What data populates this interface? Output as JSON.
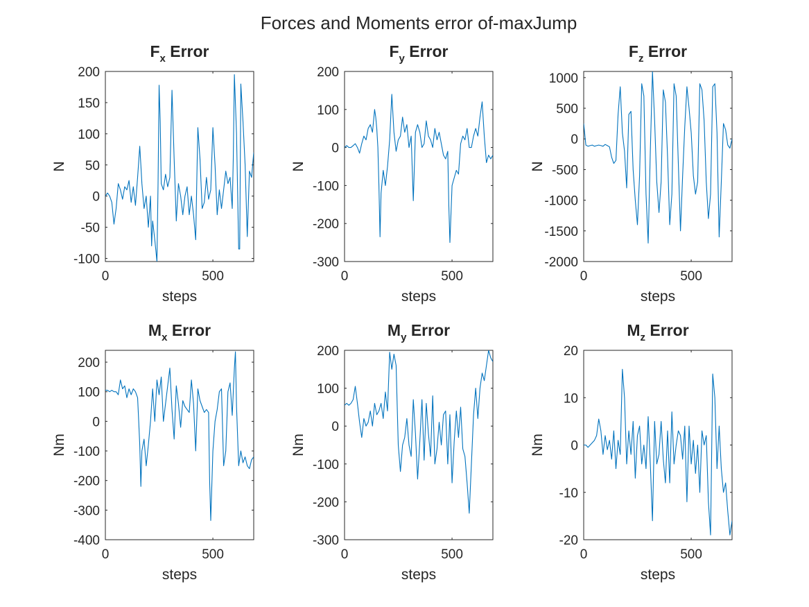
{
  "figure": {
    "title": "Forces and Moments error of-maxJump",
    "line_color": "#0072BD",
    "axis_color": "#262626"
  },
  "chart_data": [
    {
      "type": "line",
      "title": "F",
      "title_subscript": "x",
      "title_suffix": " Error",
      "xlabel": "steps",
      "ylabel": "N",
      "xlim": [
        0,
        690
      ],
      "ylim": [
        -105,
        200
      ],
      "xticks": [
        0,
        500
      ],
      "yticks": [
        -100,
        -50,
        0,
        50,
        100,
        150,
        200
      ],
      "grid": false,
      "series": [
        {
          "x": [
            0,
            10,
            20,
            30,
            40,
            50,
            60,
            70,
            80,
            90,
            100,
            110,
            120,
            130,
            140,
            150,
            160,
            165,
            170,
            180,
            190,
            200,
            210,
            215,
            220,
            230,
            240,
            245,
            250,
            255,
            260,
            270,
            280,
            290,
            300,
            310,
            320,
            330,
            340,
            350,
            360,
            370,
            380,
            390,
            400,
            410,
            420,
            425,
            430,
            440,
            450,
            460,
            470,
            480,
            490,
            500,
            510,
            520,
            530,
            540,
            550,
            560,
            570,
            580,
            590,
            595,
            600,
            610,
            620,
            625,
            630,
            640,
            650,
            660,
            670,
            680,
            690
          ],
          "y": [
            0,
            5,
            0,
            -10,
            -45,
            -20,
            20,
            10,
            -5,
            15,
            10,
            25,
            -10,
            15,
            -15,
            30,
            80,
            50,
            20,
            -20,
            0,
            -50,
            0,
            -80,
            -40,
            -70,
            -105,
            20,
            178,
            120,
            20,
            10,
            35,
            15,
            30,
            170,
            60,
            -40,
            20,
            0,
            -30,
            0,
            15,
            -30,
            0,
            -30,
            -70,
            20,
            110,
            60,
            -20,
            -10,
            30,
            -5,
            10,
            110,
            50,
            -30,
            10,
            -20,
            10,
            40,
            20,
            30,
            -20,
            60,
            195,
            100,
            -85,
            -85,
            180,
            120,
            50,
            -65,
            40,
            30,
            70
          ]
        }
      ]
    },
    {
      "type": "line",
      "title": "F",
      "title_subscript": "y",
      "title_suffix": " Error",
      "xlabel": "steps",
      "ylabel": "N",
      "xlim": [
        0,
        690
      ],
      "ylim": [
        -300,
        200
      ],
      "xticks": [
        0,
        500
      ],
      "yticks": [
        -300,
        -200,
        -100,
        0,
        100,
        200
      ],
      "grid": false,
      "series": [
        {
          "x": [
            0,
            10,
            20,
            30,
            40,
            50,
            60,
            70,
            80,
            90,
            100,
            110,
            120,
            130,
            140,
            145,
            150,
            155,
            160,
            165,
            170,
            180,
            190,
            200,
            210,
            220,
            230,
            240,
            250,
            260,
            270,
            280,
            290,
            300,
            310,
            320,
            330,
            340,
            350,
            360,
            370,
            380,
            390,
            400,
            410,
            420,
            430,
            440,
            450,
            460,
            470,
            480,
            485,
            490,
            500,
            510,
            520,
            530,
            540,
            550,
            560,
            570,
            580,
            590,
            600,
            610,
            620,
            630,
            640,
            650,
            660,
            670,
            680,
            690
          ],
          "y": [
            0,
            5,
            0,
            0,
            5,
            10,
            0,
            -15,
            10,
            30,
            20,
            50,
            60,
            40,
            100,
            80,
            50,
            0,
            -100,
            -235,
            -120,
            -60,
            -100,
            -50,
            20,
            140,
            40,
            -10,
            20,
            30,
            80,
            40,
            60,
            0,
            30,
            -140,
            40,
            60,
            40,
            0,
            10,
            70,
            30,
            20,
            0,
            50,
            20,
            40,
            10,
            -20,
            -30,
            -10,
            -150,
            -250,
            -100,
            -80,
            -60,
            -70,
            10,
            30,
            20,
            50,
            0,
            0,
            30,
            50,
            30,
            80,
            120,
            30,
            -40,
            -20,
            -30,
            -20
          ]
        }
      ]
    },
    {
      "type": "line",
      "title": "F",
      "title_subscript": "z",
      "title_suffix": " Error",
      "xlabel": "steps",
      "ylabel": "N",
      "xlim": [
        0,
        690
      ],
      "ylim": [
        -2000,
        1100
      ],
      "xticks": [
        0,
        500
      ],
      "yticks": [
        -2000,
        -1500,
        -1000,
        -500,
        0,
        500,
        1000
      ],
      "grid": false,
      "series": [
        {
          "x": [
            0,
            10,
            20,
            30,
            40,
            50,
            60,
            70,
            80,
            90,
            100,
            110,
            120,
            130,
            140,
            150,
            160,
            170,
            180,
            190,
            200,
            210,
            220,
            230,
            240,
            250,
            260,
            270,
            280,
            290,
            300,
            310,
            320,
            330,
            340,
            350,
            360,
            370,
            380,
            390,
            400,
            410,
            420,
            430,
            440,
            450,
            460,
            470,
            480,
            490,
            500,
            510,
            520,
            530,
            540,
            550,
            560,
            570,
            580,
            590,
            600,
            610,
            620,
            630,
            640,
            650,
            660,
            670,
            680,
            690
          ],
          "y": [
            250,
            -100,
            -120,
            -110,
            -100,
            -120,
            -110,
            -100,
            -110,
            -120,
            -90,
            -110,
            -130,
            -300,
            -400,
            -350,
            400,
            850,
            100,
            -200,
            -800,
            400,
            450,
            -500,
            -1000,
            -1400,
            -600,
            900,
            700,
            -900,
            -1700,
            -200,
            1100,
            300,
            -700,
            -1200,
            -700,
            800,
            600,
            -300,
            -1400,
            -900,
            900,
            700,
            -400,
            -1500,
            -600,
            200,
            850,
            500,
            100,
            -600,
            -900,
            -700,
            900,
            800,
            300,
            -700,
            -1300,
            -900,
            850,
            900,
            100,
            -1600,
            -700,
            250,
            150,
            -100,
            -150,
            0
          ]
        }
      ]
    },
    {
      "type": "line",
      "title": "M",
      "title_subscript": "x",
      "title_suffix": " Error",
      "xlabel": "steps",
      "ylabel": "Nm",
      "xlim": [
        0,
        690
      ],
      "ylim": [
        -400,
        240
      ],
      "xticks": [
        0,
        500
      ],
      "yticks": [
        -400,
        -300,
        -200,
        -100,
        0,
        100,
        200
      ],
      "grid": false,
      "series": [
        {
          "x": [
            0,
            10,
            20,
            30,
            40,
            50,
            60,
            70,
            80,
            90,
            100,
            110,
            120,
            130,
            140,
            150,
            155,
            160,
            165,
            170,
            180,
            190,
            200,
            210,
            220,
            230,
            240,
            250,
            260,
            270,
            280,
            290,
            300,
            310,
            320,
            330,
            340,
            350,
            360,
            370,
            380,
            390,
            400,
            410,
            420,
            430,
            440,
            450,
            460,
            470,
            480,
            485,
            490,
            500,
            510,
            520,
            530,
            540,
            550,
            560,
            570,
            580,
            590,
            600,
            605,
            610,
            620,
            630,
            640,
            650,
            660,
            670,
            680,
            690
          ],
          "y": [
            105,
            105,
            100,
            105,
            100,
            100,
            90,
            140,
            110,
            120,
            80,
            110,
            90,
            110,
            100,
            80,
            0,
            -80,
            -220,
            -100,
            -60,
            -150,
            -80,
            0,
            110,
            0,
            140,
            90,
            150,
            0,
            60,
            120,
            180,
            40,
            -60,
            120,
            60,
            -20,
            70,
            50,
            40,
            30,
            140,
            60,
            -100,
            110,
            70,
            50,
            30,
            40,
            30,
            -200,
            -335,
            -100,
            0,
            40,
            100,
            110,
            -150,
            -100,
            100,
            130,
            20,
            180,
            235,
            50,
            -150,
            -100,
            -140,
            -120,
            -150,
            -160,
            -130,
            -120
          ]
        }
      ]
    },
    {
      "type": "line",
      "title": "M",
      "title_subscript": "y",
      "title_suffix": " Error",
      "xlabel": "steps",
      "ylabel": "Nm",
      "xlim": [
        0,
        690
      ],
      "ylim": [
        -300,
        200
      ],
      "xticks": [
        0,
        500
      ],
      "yticks": [
        -300,
        -200,
        -100,
        0,
        100,
        200
      ],
      "grid": false,
      "series": [
        {
          "x": [
            0,
            10,
            20,
            30,
            40,
            50,
            60,
            70,
            80,
            90,
            100,
            110,
            120,
            130,
            140,
            150,
            160,
            170,
            180,
            190,
            200,
            210,
            220,
            230,
            240,
            250,
            260,
            270,
            280,
            290,
            300,
            310,
            320,
            330,
            340,
            350,
            360,
            370,
            380,
            390,
            400,
            410,
            420,
            430,
            440,
            450,
            460,
            470,
            480,
            490,
            500,
            510,
            520,
            530,
            540,
            550,
            560,
            570,
            580,
            590,
            600,
            610,
            620,
            630,
            640,
            650,
            660,
            670,
            680,
            690
          ],
          "y": [
            55,
            60,
            55,
            60,
            70,
            105,
            60,
            10,
            -30,
            20,
            0,
            10,
            40,
            0,
            60,
            30,
            40,
            60,
            20,
            90,
            40,
            195,
            150,
            190,
            160,
            -50,
            -120,
            -50,
            -30,
            20,
            -50,
            -80,
            70,
            -20,
            -140,
            -40,
            70,
            -90,
            60,
            -20,
            -80,
            80,
            -100,
            -60,
            10,
            -50,
            30,
            40,
            -100,
            30,
            -150,
            -40,
            40,
            -30,
            50,
            -60,
            -80,
            -150,
            -230,
            -100,
            30,
            100,
            20,
            100,
            140,
            120,
            160,
            200,
            180,
            170
          ]
        }
      ]
    },
    {
      "type": "line",
      "title": "M",
      "title_subscript": "z",
      "title_suffix": " Error",
      "xlabel": "steps",
      "ylabel": "Nm",
      "xlim": [
        0,
        690
      ],
      "ylim": [
        -20,
        20
      ],
      "xticks": [
        0,
        500
      ],
      "yticks": [
        -20,
        -10,
        0,
        10,
        20
      ],
      "grid": false,
      "series": [
        {
          "x": [
            0,
            10,
            20,
            30,
            40,
            50,
            60,
            70,
            80,
            90,
            100,
            110,
            120,
            130,
            140,
            150,
            160,
            170,
            180,
            190,
            200,
            210,
            220,
            230,
            240,
            250,
            260,
            270,
            280,
            290,
            300,
            310,
            320,
            330,
            340,
            350,
            360,
            370,
            380,
            390,
            400,
            410,
            420,
            430,
            440,
            450,
            460,
            470,
            480,
            490,
            500,
            510,
            520,
            530,
            540,
            550,
            560,
            570,
            580,
            590,
            600,
            610,
            620,
            630,
            640,
            650,
            660,
            670,
            680,
            690
          ],
          "y": [
            0,
            0,
            -0.5,
            0,
            0.5,
            1,
            2,
            5.5,
            3,
            -2,
            2,
            -1,
            1,
            -3,
            3,
            -5,
            1,
            -2,
            16,
            10,
            -4,
            3,
            -2,
            5,
            -7,
            2,
            4,
            -4,
            0,
            -5,
            6,
            -4,
            -16,
            5,
            -4,
            -2,
            5,
            -3,
            -8,
            3,
            -8,
            7,
            -4,
            0,
            3,
            2,
            -3,
            4,
            -12,
            4,
            -4,
            1,
            -6,
            0,
            -10,
            3,
            0,
            2,
            -12,
            -19,
            15,
            10,
            -5,
            4,
            -5,
            -10,
            -8,
            -14,
            -19,
            -16
          ]
        }
      ]
    }
  ]
}
